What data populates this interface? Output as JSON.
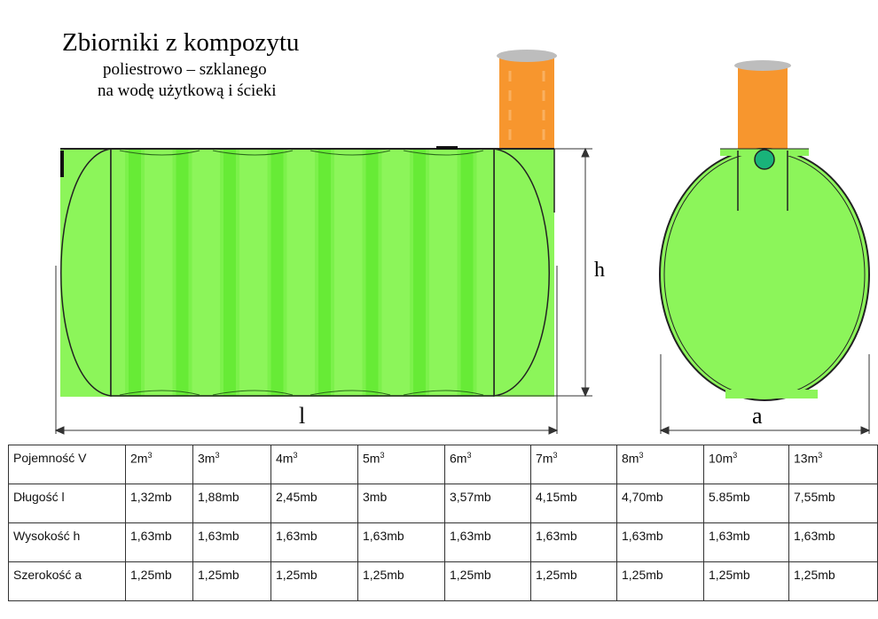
{
  "title": "Zbiorniki z kompozytu",
  "subtitle_1": "poliestrowo – szklanego",
  "subtitle_2": "na wodę użytkową i ścieki",
  "dimension_labels": {
    "h": "h",
    "l": "l",
    "a": "a"
  },
  "colors": {
    "tank_green": "#8cf55a",
    "rib_green": "#5ee82c",
    "riser_orange": "#f7962e",
    "cap_grey": "#bdbdbd",
    "inlet_teal": "#19b37a"
  },
  "table": {
    "rows": [
      {
        "label": "Pojemność V",
        "unit_sup": true,
        "values": [
          "2m",
          "3m",
          "4m",
          "5m",
          "6m",
          "7m",
          "8m",
          "10m",
          "13m"
        ]
      },
      {
        "label": "Długość l",
        "values": [
          "1,32mb",
          "1,88mb",
          "2,45mb",
          "3mb",
          "3,57mb",
          "4,15mb",
          "4,70mb",
          "5.85mb",
          "7,55mb"
        ]
      },
      {
        "label": "Wysokość h",
        "values": [
          "1,63mb",
          "1,63mb",
          "1,63mb",
          "1,63mb",
          "1,63mb",
          "1,63mb",
          "1,63mb",
          "1,63mb",
          "1,63mb"
        ]
      },
      {
        "label": "Szerokość a",
        "values": [
          "1,25mb",
          "1,25mb",
          "1,25mb",
          "1,25mb",
          "1,25mb",
          "1,25mb",
          "1,25mb",
          "1,25mb",
          "1,25mb"
        ]
      }
    ],
    "superscript": "3"
  }
}
